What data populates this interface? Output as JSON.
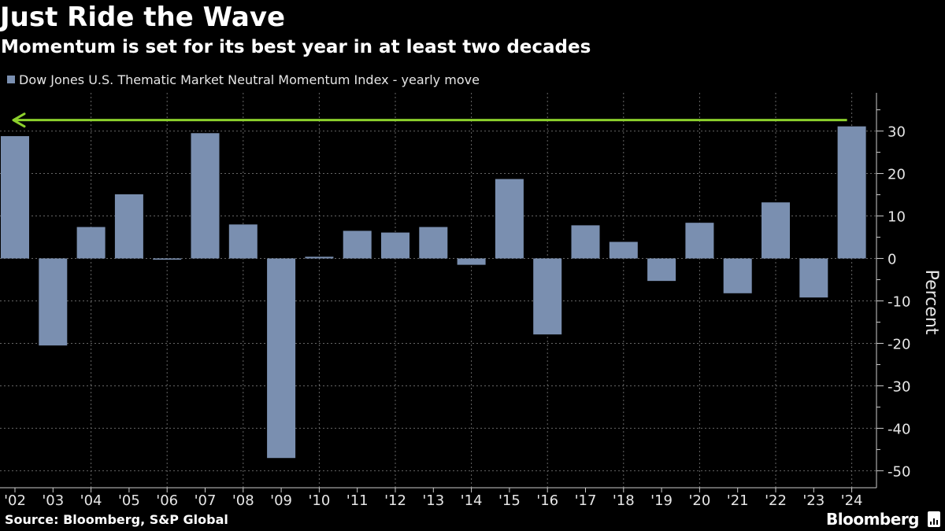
{
  "header": {
    "title": "Just Ride the Wave",
    "subtitle": "Momentum is set for its best year in at least two decades"
  },
  "legend": {
    "label": "Dow Jones U.S. Thematic Market Neutral Momentum Index - yearly move"
  },
  "footer": {
    "source": "Source: Bloomberg, S&P Global",
    "brand": "Bloomberg"
  },
  "colors": {
    "background": "#000000",
    "bar": "#7a8fb0",
    "grid": "#666666",
    "axis_text": "#e6e6e6",
    "arrow": "#8cd02c"
  },
  "chart_data": {
    "type": "bar",
    "title": "Just Ride the Wave",
    "subtitle": "Momentum is set for its best year in at least two decades",
    "xlabel": "",
    "ylabel": "Percent",
    "ylim": [
      -54,
      39
    ],
    "yticks": [
      -50,
      -40,
      -30,
      -20,
      -10,
      0,
      10,
      20,
      30
    ],
    "ytick_labels": [
      "-50",
      "-40",
      "-30",
      "-20",
      "-10",
      "0",
      "10",
      "20",
      "30"
    ],
    "yaxis_side": "right",
    "grid": true,
    "legend_position": "top-left",
    "categories": [
      "'02",
      "'03",
      "'04",
      "'05",
      "'06",
      "'07",
      "'08",
      "'09",
      "'10",
      "'11",
      "'12",
      "'13",
      "'14",
      "'15",
      "'16",
      "'17",
      "'18",
      "'19",
      "'20",
      "'21",
      "'22",
      "'23",
      "'24"
    ],
    "series": [
      {
        "name": "Dow Jones U.S. Thematic Market Neutral Momentum Index - yearly move",
        "values": [
          28.8,
          -20.5,
          7.4,
          15.1,
          -0.3,
          29.5,
          8.0,
          -47.0,
          0.4,
          6.5,
          6.1,
          7.4,
          -1.5,
          18.7,
          -17.9,
          7.8,
          3.9,
          -5.3,
          8.4,
          -8.2,
          13.2,
          -9.2,
          31.1
        ]
      }
    ],
    "annotations": [
      {
        "type": "arrow",
        "description": "horizontal green arrow pointing left from the 2024 bar",
        "from_category": "'24",
        "to_category": "'02",
        "y": 31.1
      }
    ]
  }
}
